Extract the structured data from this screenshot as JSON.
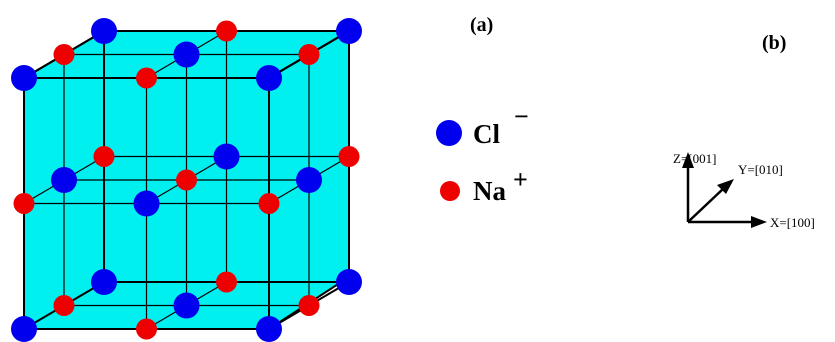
{
  "panel_a_label": "(a)",
  "panel_b_label": "(b)",
  "legend": {
    "chloride": {
      "symbol": "Cl",
      "charge": "−",
      "color": "#0000ee"
    },
    "sodium": {
      "symbol": "Na",
      "charge": "+",
      "color": "#ee0000"
    }
  },
  "axes": {
    "z": "Z=[001]",
    "y": "Y=[010]",
    "x": "X=[100]"
  },
  "colors": {
    "cube_fill": "#00f0f0",
    "cube_edge": "#000000",
    "chloride": "#0000ee",
    "sodium": "#ee0000"
  }
}
